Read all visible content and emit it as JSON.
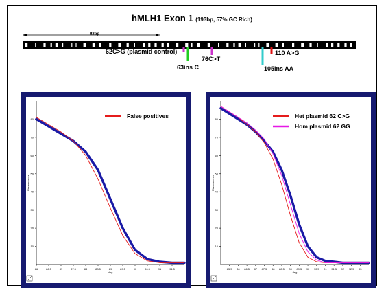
{
  "header": {
    "title": "hMLH1 Exon 1",
    "subtitle": "(193bp, 57% GC Rich)",
    "span_label": "92bp"
  },
  "variants": [
    {
      "label": "62C>G (plasmid control)",
      "color": "#cc33cc"
    },
    {
      "label": "63ins C",
      "color": "#22cc22"
    },
    {
      "label": "76C>T",
      "color": "#cc33cc"
    },
    {
      "label": "105ins AA",
      "color": "#33cccc"
    },
    {
      "label": "110 A>G",
      "color": "#dd1111"
    }
  ],
  "chart_data": [
    {
      "type": "line",
      "xlabel": "deg",
      "ylabel": "Fluorescence",
      "x_ticks": [
        "86",
        "86.5",
        "87",
        "87.5",
        "88",
        "88.5",
        "89",
        "89.5",
        "90",
        "90.5",
        "91",
        "91.5"
      ],
      "y_ticks": [
        "10",
        "20",
        "30",
        "40",
        "50",
        "60",
        "70",
        "80"
      ],
      "xlim": [
        86,
        92
      ],
      "ylim": [
        0,
        90
      ],
      "legend": [
        {
          "label": "False positives",
          "color": "#e51c1c"
        }
      ],
      "legend_position": "top-right",
      "series": [
        {
          "color": "#1a1aa6",
          "x": [
            86,
            86.5,
            87,
            87.5,
            88,
            88.5,
            89,
            89.5,
            90,
            90.5,
            91,
            91.5,
            92
          ],
          "y": [
            80,
            76,
            72,
            68,
            62,
            52,
            36,
            20,
            8,
            3,
            1.5,
            1,
            1
          ]
        },
        {
          "color": "#e51c1c",
          "x": [
            86,
            86.5,
            87,
            87.5,
            88,
            88.5,
            89,
            89.5,
            90,
            90.5,
            91,
            91.5,
            92
          ],
          "y": [
            81,
            77,
            73,
            68,
            60,
            47,
            31,
            16,
            6,
            2,
            1,
            1,
            1
          ]
        }
      ]
    },
    {
      "type": "line",
      "xlabel": "deg",
      "ylabel": "Fluorescence",
      "x_ticks": [
        "85.5",
        "86",
        "86.5",
        "87",
        "87.5",
        "88",
        "88.5",
        "89",
        "89.5",
        "90",
        "90.5",
        "91",
        "91.5",
        "92",
        "92.5",
        "93"
      ],
      "y_ticks": [
        "10",
        "20",
        "30",
        "40",
        "50",
        "60",
        "70",
        "80"
      ],
      "xlim": [
        85,
        93.5
      ],
      "ylim": [
        0,
        90
      ],
      "legend": [
        {
          "label": "Het plasmid 62 C>G",
          "color": "#e51c1c"
        },
        {
          "label": "Hom plasmid 62 GG",
          "color": "#e619e6"
        }
      ],
      "legend_position": "top-right",
      "series": [
        {
          "color": "#1a1aa6",
          "x": [
            85,
            85.5,
            86,
            86.5,
            87,
            87.5,
            88,
            88.5,
            89,
            89.5,
            90,
            90.5,
            91,
            91.5,
            92,
            93,
            93.5
          ],
          "y": [
            86,
            83,
            80,
            77,
            73,
            68,
            62,
            52,
            38,
            22,
            10,
            4,
            2,
            1.5,
            1,
            1,
            1
          ]
        },
        {
          "color": "#e51c1c",
          "x": [
            85,
            85.5,
            86,
            86.5,
            87,
            87.5,
            88,
            88.5,
            89,
            89.5,
            90,
            90.5,
            91,
            91.5,
            92,
            93,
            93.5
          ],
          "y": [
            87,
            84,
            81,
            77,
            73,
            67,
            58,
            44,
            27,
            12,
            4,
            1.5,
            1,
            1,
            1,
            1,
            1
          ]
        },
        {
          "color": "#e619e6",
          "x": [
            85,
            85.5,
            86,
            86.5,
            87,
            87.5,
            88,
            88.5,
            89,
            89.5,
            90,
            90.5,
            91,
            91.5,
            92,
            93,
            93.5
          ],
          "y": [
            87,
            84,
            81,
            78,
            74,
            69,
            61,
            49,
            33,
            17,
            7,
            2.5,
            1,
            1,
            1,
            1,
            1
          ]
        }
      ]
    }
  ]
}
